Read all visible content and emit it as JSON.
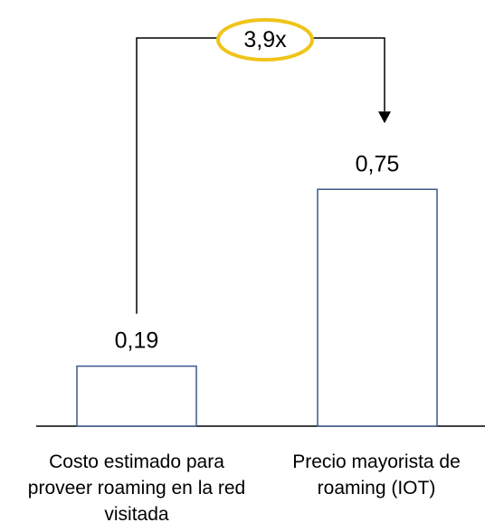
{
  "chart_data": {
    "type": "bar",
    "categories": [
      "Costo estimado para proveer roaming en la red visitada",
      "Precio mayorista de roaming (IOT)"
    ],
    "values": [
      0.19,
      0.75
    ],
    "value_labels": [
      "0,19",
      "0,75"
    ],
    "ratio_annotation": "3,9x",
    "title": "",
    "xlabel": "",
    "ylabel": "",
    "ylim": [
      0,
      1
    ],
    "grid": false,
    "legend": "none",
    "colors": {
      "bar_fill": "#ffffff",
      "bar_stroke": "#3b5a8a",
      "annotation_ring": "#f0c419",
      "line": "#000000"
    }
  }
}
